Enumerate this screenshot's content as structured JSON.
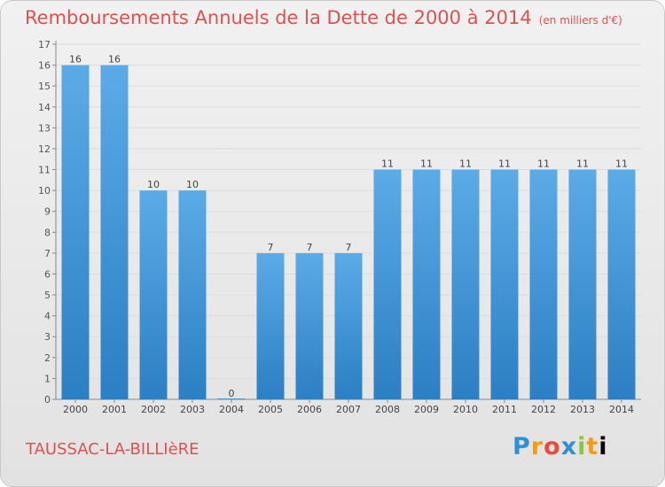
{
  "header": {
    "title": "Remboursements Annuels de la Dette de 2000 à 2014",
    "unit": "(en milliers d'€)"
  },
  "footer": {
    "town": "TAUSSAC-LA-BILLIèRE",
    "logo_letters": [
      "P",
      "r",
      "o",
      "x",
      "i",
      "t",
      "i"
    ],
    "logo_text": "Proxiti"
  },
  "colors": {
    "title": "#d9534f",
    "bar_light": "#5aabe6",
    "bar_dark": "#2b7fc3",
    "grid": "#dcdcdc"
  },
  "chart_data": {
    "type": "bar",
    "title": "Remboursements Annuels de la Dette de 2000 à 2014",
    "subtitle": "(en milliers d'€)",
    "xlabel": "",
    "ylabel": "",
    "categories": [
      "2000",
      "2001",
      "2002",
      "2003",
      "2004",
      "2005",
      "2006",
      "2007",
      "2008",
      "2009",
      "2010",
      "2011",
      "2012",
      "2013",
      "2014"
    ],
    "values": [
      16,
      16,
      10,
      10,
      0,
      7,
      7,
      7,
      11,
      11,
      11,
      11,
      11,
      11,
      11
    ],
    "ylim": [
      0,
      17
    ],
    "yticks": [
      0,
      1,
      2,
      3,
      4,
      5,
      6,
      7,
      8,
      9,
      10,
      11,
      12,
      13,
      14,
      15,
      16,
      17
    ],
    "grid": true,
    "legend": "none"
  }
}
